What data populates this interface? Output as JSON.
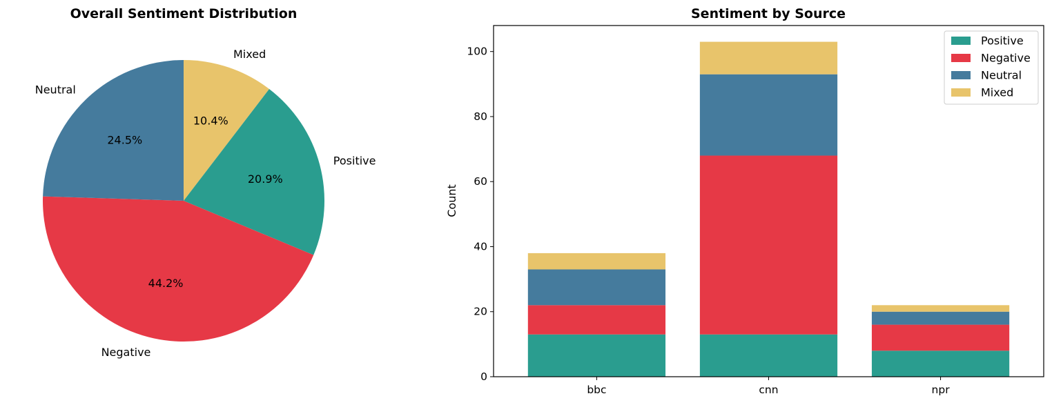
{
  "chart_data": [
    {
      "type": "pie",
      "title": "Overall Sentiment Distribution",
      "slices": [
        {
          "label": "Mixed",
          "percent": 10.4,
          "pct_label": "10.4%",
          "color": "#e8c46b"
        },
        {
          "label": "Positive",
          "percent": 20.9,
          "pct_label": "20.9%",
          "color": "#2a9d8f"
        },
        {
          "label": "Negative",
          "percent": 44.2,
          "pct_label": "44.2%",
          "color": "#e63946"
        },
        {
          "label": "Neutral",
          "percent": 24.5,
          "pct_label": "24.5%",
          "color": "#457b9d"
        }
      ],
      "start_angle_deg": 90,
      "direction": "clockwise"
    },
    {
      "type": "bar",
      "stacked": true,
      "title": "Sentiment by Source",
      "xlabel": "",
      "ylabel": "Count",
      "categories": [
        "bbc",
        "cnn",
        "npr"
      ],
      "series": [
        {
          "name": "Positive",
          "values": [
            13,
            13,
            8
          ],
          "color": "#2a9d8f"
        },
        {
          "name": "Negative",
          "values": [
            9,
            55,
            8
          ],
          "color": "#e63946"
        },
        {
          "name": "Neutral",
          "values": [
            11,
            25,
            4
          ],
          "color": "#457b9d"
        },
        {
          "name": "Mixed",
          "values": [
            5,
            10,
            2
          ],
          "color": "#e8c46b"
        }
      ],
      "ylim": [
        0,
        108
      ],
      "yticks": [
        0,
        20,
        40,
        60,
        80,
        100
      ],
      "legend": "top-right",
      "grid": false
    }
  ]
}
